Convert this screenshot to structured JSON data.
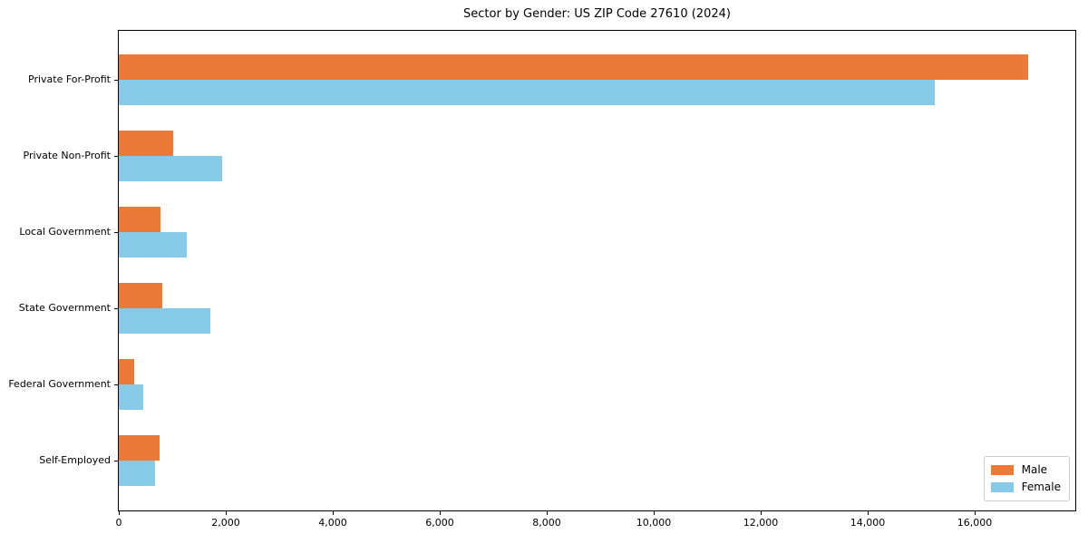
{
  "chart_data": {
    "type": "bar",
    "orientation": "horizontal",
    "title": "Sector by Gender: US ZIP Code 27610 (2024)",
    "categories": [
      "Private For-Profit",
      "Private Non-Profit",
      "Local Government",
      "State Government",
      "Federal Government",
      "Self-Employed"
    ],
    "series": [
      {
        "name": "Male",
        "color": "#eb7a36",
        "values": [
          17000,
          1020,
          780,
          810,
          290,
          760
        ]
      },
      {
        "name": "Female",
        "color": "#85cbe8",
        "values": [
          15250,
          1930,
          1270,
          1710,
          460,
          680
        ]
      }
    ],
    "xlabel": "",
    "ylabel": "",
    "xlim": [
      0,
      17880
    ],
    "xticks": {
      "values": [
        0,
        2000,
        4000,
        6000,
        8000,
        10000,
        12000,
        14000,
        16000
      ],
      "labels": [
        "0",
        "2,000",
        "4,000",
        "6,000",
        "8,000",
        "10,000",
        "12,000",
        "14,000",
        "16,000"
      ]
    },
    "legend": {
      "position": "lower right"
    },
    "grid": false,
    "colors": {
      "spine": "#000000",
      "legend_border": "#cccccc",
      "background": "#ffffff"
    }
  }
}
